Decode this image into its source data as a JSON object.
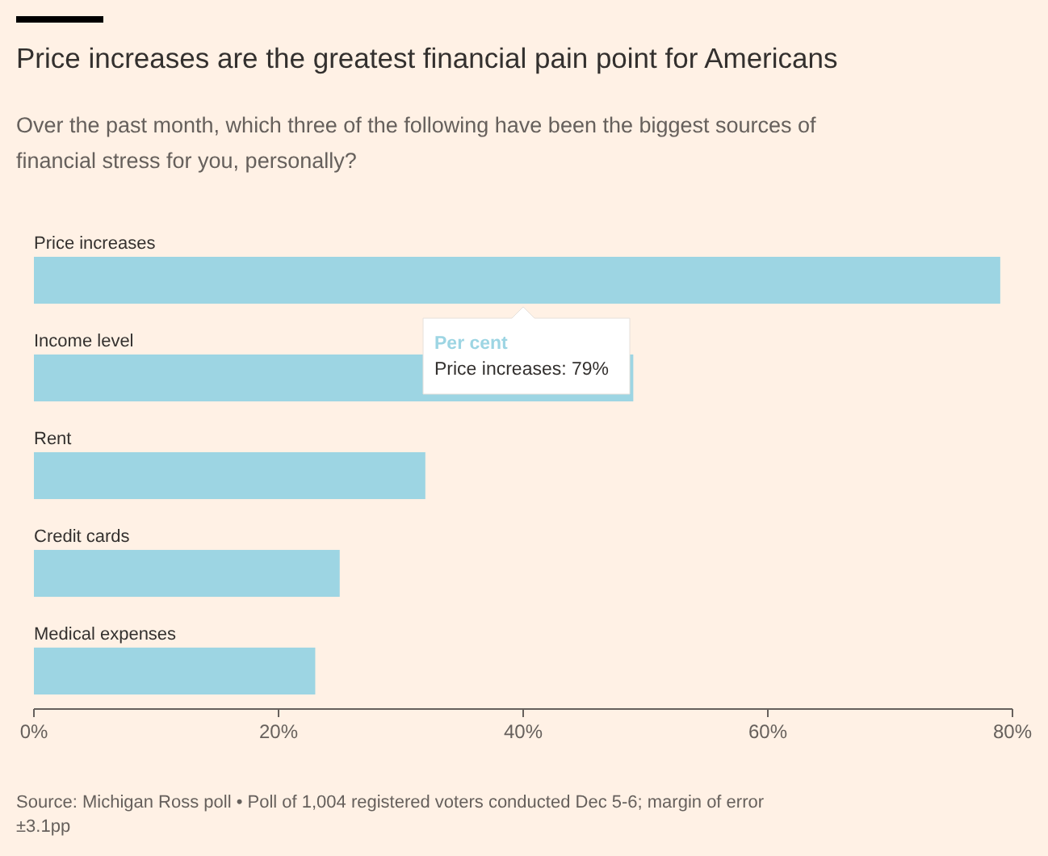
{
  "chart_data": {
    "type": "bar",
    "orientation": "horizontal",
    "title": "Price increases are the greatest financial pain point for Americans",
    "subtitle": "Over the past month, which three of the following have been the biggest sources of financial stress for you, personally?",
    "categories": [
      "Price increases",
      "Income level",
      "Rent",
      "Credit cards",
      "Medical expenses"
    ],
    "values": [
      79,
      49,
      32,
      25,
      23
    ],
    "color": "#9dd5e3",
    "xlim": [
      0,
      80
    ],
    "xticks": [
      {
        "value": 0,
        "label": "0%"
      },
      {
        "value": 20,
        "label": "20%"
      },
      {
        "value": 40,
        "label": "40%"
      },
      {
        "value": 60,
        "label": "60%"
      },
      {
        "value": 80,
        "label": "80%"
      }
    ],
    "grid": false,
    "annotations": [
      "Per cent",
      "Price increases: 79%",
      "Source: Michigan Ross poll • Poll of 1,004 registered voters conducted Dec 5-6; margin of error ±3.1pp"
    ]
  }
}
